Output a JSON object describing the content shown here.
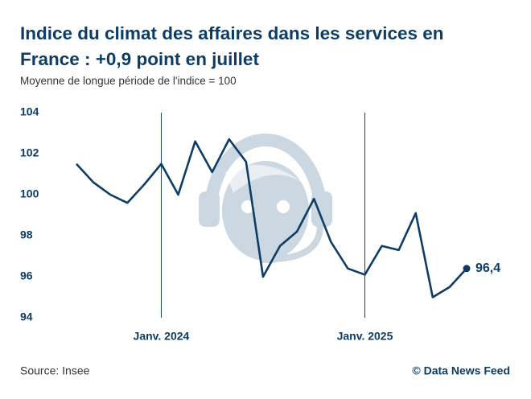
{
  "chart_data": {
    "type": "line",
    "title": "Indice du climat des affaires dans les services en France : +0,9 point en juillet",
    "subtitle": "Moyenne de longue période de l'indice = 100",
    "categories": [
      null,
      null,
      null,
      null,
      null,
      "Janv. 2024",
      null,
      null,
      null,
      null,
      null,
      null,
      null,
      null,
      null,
      null,
      null,
      "Janv. 2025",
      null,
      null,
      null,
      null,
      null,
      null
    ],
    "series": [
      {
        "name": "Indice",
        "color": "#0d3d66",
        "values": [
          101.5,
          100.6,
          100.0,
          99.6,
          100.5,
          101.5,
          100.0,
          102.6,
          101.1,
          102.7,
          101.6,
          96.0,
          97.5,
          98.2,
          99.8,
          97.7,
          96.4,
          96.1,
          97.5,
          97.3,
          99.1,
          95.0,
          95.5,
          96.4
        ],
        "value_labels": [
          null,
          null,
          null,
          null,
          null,
          null,
          null,
          null,
          null,
          null,
          null,
          null,
          null,
          null,
          null,
          null,
          null,
          null,
          null,
          null,
          null,
          null,
          null,
          "96,4"
        ]
      }
    ],
    "ylim": [
      94,
      104
    ],
    "yticks": [
      94,
      96,
      98,
      100,
      102,
      104
    ],
    "grid": false,
    "source": "Source: Insee",
    "credit": "© Data News Feed"
  }
}
